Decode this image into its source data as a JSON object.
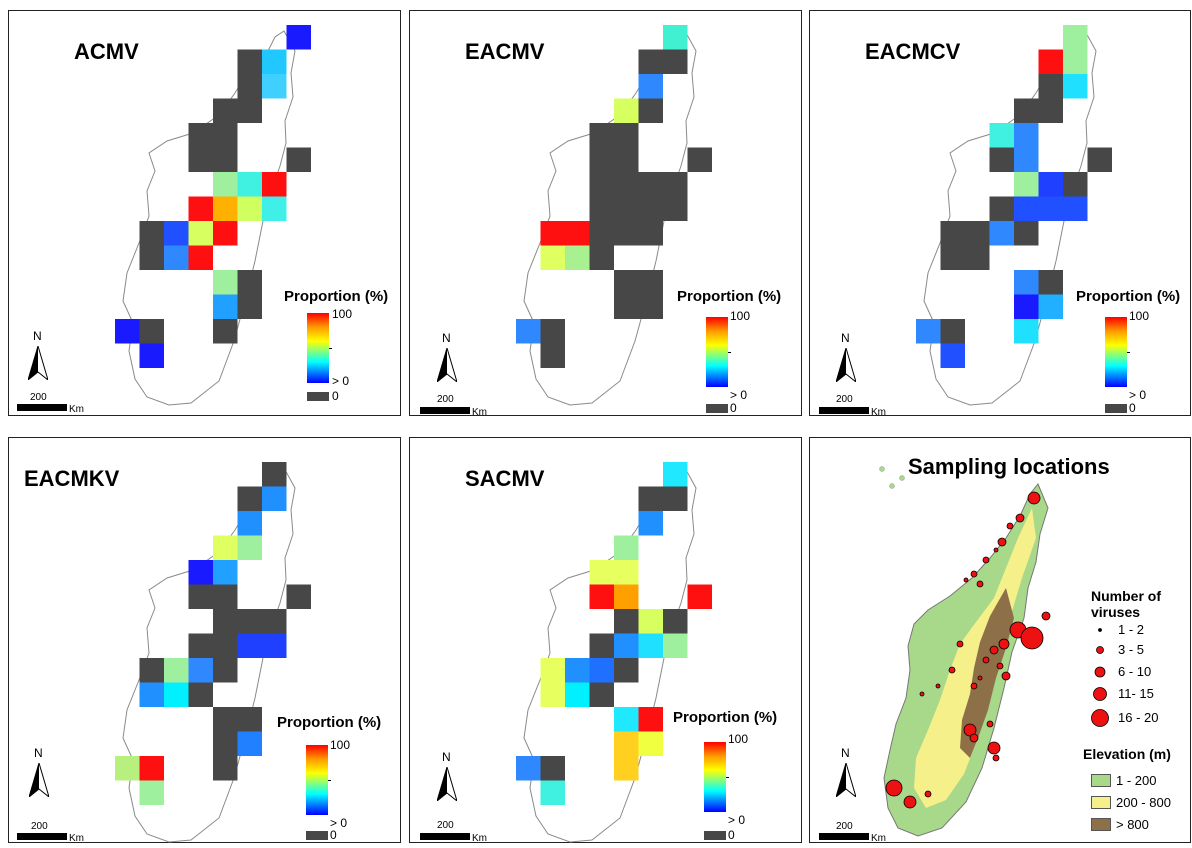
{
  "colors": {
    "zero": "#474747",
    "outline": "#8a8a8a"
  },
  "common": {
    "legend_title": "Proportion (%)",
    "legend_max": "100",
    "legend_min": "> 0",
    "legend_zero": "0",
    "north_label": "N",
    "scale_value": "200",
    "scale_unit": "Km"
  },
  "panels": [
    {
      "title": "ACMV",
      "cells": [
        [
          11,
          0,
          "#1a1aff"
        ],
        [
          9,
          1,
          "#474747"
        ],
        [
          10,
          1,
          "#20c8ff"
        ],
        [
          9,
          2,
          "#474747"
        ],
        [
          10,
          2,
          "#40d0ff"
        ],
        [
          8,
          3,
          "#474747"
        ],
        [
          9,
          3,
          "#474747"
        ],
        [
          7,
          4,
          "#474747"
        ],
        [
          8,
          4,
          "#474747"
        ],
        [
          7,
          5,
          "#474747"
        ],
        [
          8,
          5,
          "#474747"
        ],
        [
          11,
          5,
          "#474747"
        ],
        [
          8,
          6,
          "#9ef09e"
        ],
        [
          9,
          6,
          "#40f0e0"
        ],
        [
          10,
          6,
          "#ff1010"
        ],
        [
          7,
          7,
          "#ff1010"
        ],
        [
          8,
          7,
          "#ffb000"
        ],
        [
          9,
          7,
          "#d0ff60"
        ],
        [
          10,
          7,
          "#40f0e8"
        ],
        [
          5,
          8,
          "#474747"
        ],
        [
          6,
          8,
          "#2050ff"
        ],
        [
          7,
          8,
          "#d8ff60"
        ],
        [
          8,
          8,
          "#ff1010"
        ],
        [
          5,
          9,
          "#474747"
        ],
        [
          6,
          9,
          "#3088ff"
        ],
        [
          7,
          9,
          "#ff1010"
        ],
        [
          8,
          10,
          "#9ef09e"
        ],
        [
          9,
          10,
          "#474747"
        ],
        [
          8,
          11,
          "#20a0ff"
        ],
        [
          9,
          11,
          "#474747"
        ],
        [
          4,
          12,
          "#1a1aff"
        ],
        [
          5,
          12,
          "#474747"
        ],
        [
          8,
          12,
          "#474747"
        ],
        [
          5,
          13,
          "#1a1aff"
        ]
      ]
    },
    {
      "title": "EACMV",
      "cells": [
        [
          10,
          0,
          "#40f0d0"
        ],
        [
          9,
          1,
          "#474747"
        ],
        [
          10,
          1,
          "#474747"
        ],
        [
          9,
          2,
          "#3088ff"
        ],
        [
          8,
          3,
          "#d8ff60"
        ],
        [
          9,
          3,
          "#474747"
        ],
        [
          7,
          4,
          "#474747"
        ],
        [
          8,
          4,
          "#474747"
        ],
        [
          7,
          5,
          "#474747"
        ],
        [
          8,
          5,
          "#474747"
        ],
        [
          11,
          5,
          "#474747"
        ],
        [
          7,
          6,
          "#474747"
        ],
        [
          8,
          6,
          "#474747"
        ],
        [
          9,
          6,
          "#474747"
        ],
        [
          10,
          6,
          "#474747"
        ],
        [
          7,
          7,
          "#474747"
        ],
        [
          8,
          7,
          "#474747"
        ],
        [
          9,
          7,
          "#474747"
        ],
        [
          10,
          7,
          "#474747"
        ],
        [
          5,
          8,
          "#ff1010"
        ],
        [
          6,
          8,
          "#ff1010"
        ],
        [
          7,
          8,
          "#474747"
        ],
        [
          8,
          8,
          "#474747"
        ],
        [
          9,
          8,
          "#474747"
        ],
        [
          5,
          9,
          "#e0ff60"
        ],
        [
          6,
          9,
          "#a8f090"
        ],
        [
          7,
          9,
          "#474747"
        ],
        [
          8,
          10,
          "#474747"
        ],
        [
          9,
          10,
          "#474747"
        ],
        [
          8,
          11,
          "#474747"
        ],
        [
          9,
          11,
          "#474747"
        ],
        [
          4,
          12,
          "#3088ff"
        ],
        [
          5,
          12,
          "#474747"
        ],
        [
          5,
          13,
          "#474747"
        ]
      ]
    },
    {
      "title": "EACMCV",
      "cells": [
        [
          10,
          0,
          "#9ef09e"
        ],
        [
          9,
          1,
          "#ff1010"
        ],
        [
          10,
          1,
          "#9ef09e"
        ],
        [
          9,
          2,
          "#474747"
        ],
        [
          10,
          2,
          "#20e0ff"
        ],
        [
          8,
          3,
          "#474747"
        ],
        [
          9,
          3,
          "#474747"
        ],
        [
          7,
          4,
          "#40f0e0"
        ],
        [
          8,
          4,
          "#3088ff"
        ],
        [
          7,
          5,
          "#474747"
        ],
        [
          8,
          5,
          "#3088ff"
        ],
        [
          11,
          5,
          "#474747"
        ],
        [
          8,
          6,
          "#9ef09e"
        ],
        [
          9,
          6,
          "#2040ff"
        ],
        [
          10,
          6,
          "#474747"
        ],
        [
          7,
          7,
          "#474747"
        ],
        [
          8,
          7,
          "#2050ff"
        ],
        [
          9,
          7,
          "#2050ff"
        ],
        [
          10,
          7,
          "#2050ff"
        ],
        [
          5,
          8,
          "#474747"
        ],
        [
          6,
          8,
          "#474747"
        ],
        [
          7,
          8,
          "#3088ff"
        ],
        [
          8,
          8,
          "#474747"
        ],
        [
          5,
          9,
          "#474747"
        ],
        [
          6,
          9,
          "#474747"
        ],
        [
          8,
          10,
          "#3088ff"
        ],
        [
          9,
          10,
          "#474747"
        ],
        [
          8,
          11,
          "#1a1aff"
        ],
        [
          9,
          11,
          "#20b0ff"
        ],
        [
          4,
          12,
          "#3088ff"
        ],
        [
          5,
          12,
          "#474747"
        ],
        [
          8,
          12,
          "#20e0ff"
        ],
        [
          5,
          13,
          "#2050ff"
        ]
      ]
    },
    {
      "title": "EACMKV",
      "cells": [
        [
          10,
          0,
          "#474747"
        ],
        [
          9,
          1,
          "#474747"
        ],
        [
          10,
          1,
          "#2090ff"
        ],
        [
          9,
          2,
          "#2090ff"
        ],
        [
          8,
          3,
          "#e0ff60"
        ],
        [
          9,
          3,
          "#9ef09e"
        ],
        [
          7,
          4,
          "#1a1aff"
        ],
        [
          8,
          4,
          "#20a0ff"
        ],
        [
          7,
          5,
          "#474747"
        ],
        [
          8,
          5,
          "#474747"
        ],
        [
          11,
          5,
          "#474747"
        ],
        [
          8,
          6,
          "#474747"
        ],
        [
          9,
          6,
          "#474747"
        ],
        [
          10,
          6,
          "#474747"
        ],
        [
          7,
          7,
          "#474747"
        ],
        [
          8,
          7,
          "#474747"
        ],
        [
          9,
          7,
          "#2040ff"
        ],
        [
          10,
          7,
          "#2040ff"
        ],
        [
          5,
          8,
          "#474747"
        ],
        [
          6,
          8,
          "#9ef09e"
        ],
        [
          7,
          8,
          "#3088ff"
        ],
        [
          8,
          8,
          "#474747"
        ],
        [
          5,
          9,
          "#2090ff"
        ],
        [
          6,
          9,
          "#00f0ff"
        ],
        [
          7,
          9,
          "#474747"
        ],
        [
          8,
          10,
          "#474747"
        ],
        [
          9,
          10,
          "#474747"
        ],
        [
          8,
          11,
          "#474747"
        ],
        [
          9,
          11,
          "#2080ff"
        ],
        [
          4,
          12,
          "#b8f080"
        ],
        [
          5,
          12,
          "#ff1010"
        ],
        [
          8,
          12,
          "#474747"
        ],
        [
          5,
          13,
          "#9ef09e"
        ]
      ]
    },
    {
      "title": "SACMV",
      "cells": [
        [
          10,
          0,
          "#20e8ff"
        ],
        [
          9,
          1,
          "#474747"
        ],
        [
          10,
          1,
          "#474747"
        ],
        [
          9,
          2,
          "#2090ff"
        ],
        [
          8,
          3,
          "#9ef09e"
        ],
        [
          7,
          4,
          "#e8ff60"
        ],
        [
          8,
          4,
          "#e8ff60"
        ],
        [
          7,
          5,
          "#ff1010"
        ],
        [
          8,
          5,
          "#ffa000"
        ],
        [
          11,
          5,
          "#ff1010"
        ],
        [
          8,
          6,
          "#474747"
        ],
        [
          9,
          6,
          "#d8ff60"
        ],
        [
          10,
          6,
          "#474747"
        ],
        [
          7,
          7,
          "#474747"
        ],
        [
          8,
          7,
          "#2090ff"
        ],
        [
          9,
          7,
          "#20e0ff"
        ],
        [
          10,
          7,
          "#9ef09e"
        ],
        [
          5,
          8,
          "#e8ff60"
        ],
        [
          6,
          8,
          "#2090ff"
        ],
        [
          7,
          8,
          "#2070ff"
        ],
        [
          8,
          8,
          "#474747"
        ],
        [
          5,
          9,
          "#e8ff60"
        ],
        [
          6,
          9,
          "#00f0ff"
        ],
        [
          7,
          9,
          "#474747"
        ],
        [
          8,
          10,
          "#20e8ff"
        ],
        [
          9,
          10,
          "#ff1010"
        ],
        [
          8,
          11,
          "#ffd020"
        ],
        [
          9,
          11,
          "#f0ff40"
        ],
        [
          4,
          12,
          "#3088ff"
        ],
        [
          5,
          12,
          "#474747"
        ],
        [
          8,
          12,
          "#ffd020"
        ],
        [
          5,
          13,
          "#40f0e0"
        ]
      ]
    }
  ],
  "sampling": {
    "title": "Sampling locations",
    "size_legend_title": "Number of viruses",
    "size_classes": [
      {
        "label": "1 - 2"
      },
      {
        "label": "3 - 5"
      },
      {
        "label": "6 - 10"
      },
      {
        "label": "11- 15"
      },
      {
        "label": "16 - 20"
      }
    ],
    "elevation_legend_title": "Elevation (m)",
    "elevation_classes": [
      {
        "label": "1 - 200",
        "color": "#a8d88a"
      },
      {
        "label": "200 - 800",
        "color": "#f5f08a"
      },
      {
        "label": "> 800",
        "color": "#8e7048"
      }
    ],
    "marker_color": "#ee1111"
  }
}
